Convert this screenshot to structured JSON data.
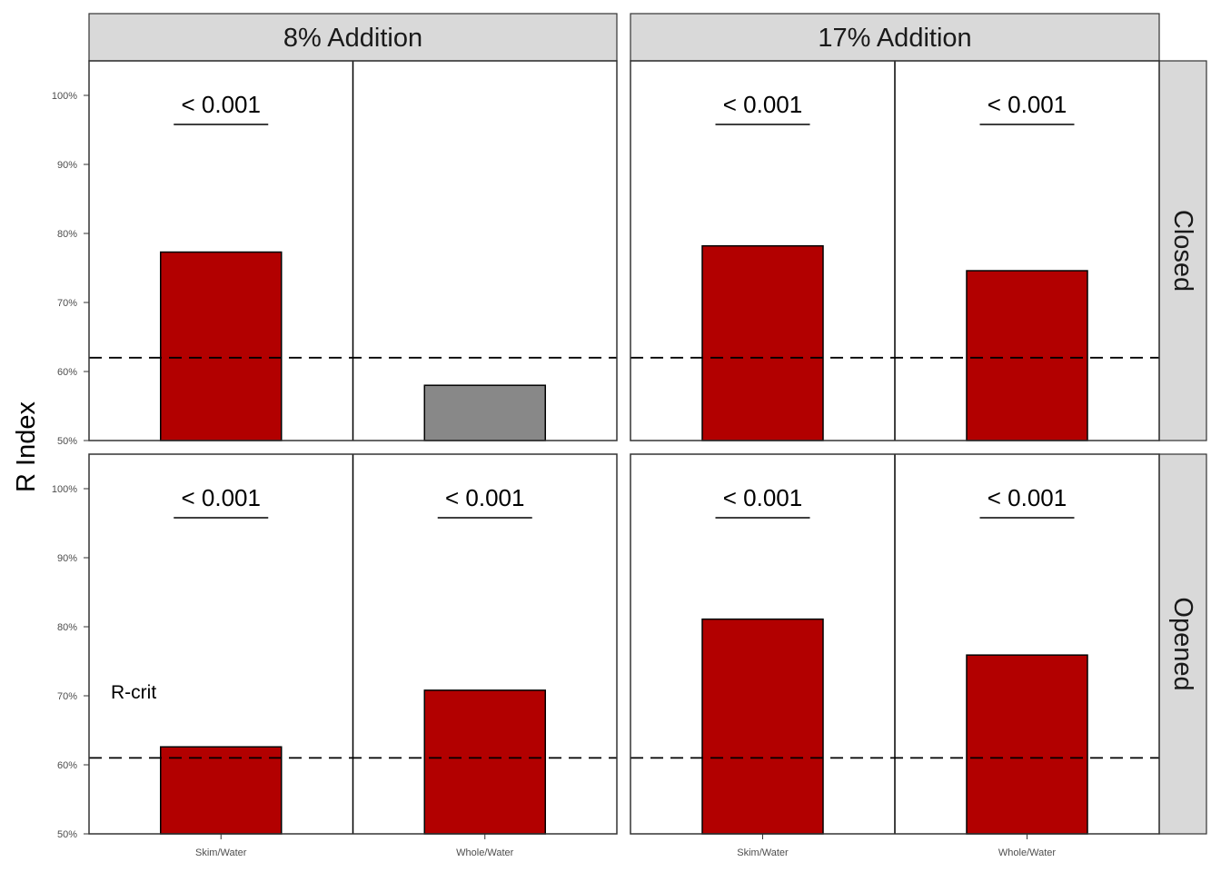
{
  "chart_data": {
    "type": "bar",
    "ylabel": "R Index",
    "ylim": [
      50,
      105
    ],
    "yticks": [
      "50%",
      "60%",
      "70%",
      "80%",
      "90%",
      "100%"
    ],
    "categories": [
      "Skim/Water",
      "Whole/Water"
    ],
    "column_facets": [
      "8% Addition",
      "17% Addition"
    ],
    "row_facets": [
      "Closed",
      "Opened"
    ],
    "rcrit_label": "R-crit",
    "colors": {
      "significant": "#b20000",
      "not_significant": "#888888"
    },
    "panels": [
      {
        "column": "8% Addition",
        "row": "Closed",
        "rcrit": 62,
        "bars": [
          {
            "category": "Skim/Water",
            "value": 77.3,
            "significant": true,
            "p_label": "< 0.001"
          },
          {
            "category": "Whole/Water",
            "value": 58.0,
            "significant": false,
            "p_label": ""
          }
        ]
      },
      {
        "column": "17% Addition",
        "row": "Closed",
        "rcrit": 62,
        "bars": [
          {
            "category": "Skim/Water",
            "value": 78.2,
            "significant": true,
            "p_label": "< 0.001"
          },
          {
            "category": "Whole/Water",
            "value": 74.6,
            "significant": true,
            "p_label": "< 0.001"
          }
        ]
      },
      {
        "column": "8% Addition",
        "row": "Opened",
        "rcrit": 61,
        "bars": [
          {
            "category": "Skim/Water",
            "value": 62.6,
            "significant": true,
            "p_label": "< 0.001"
          },
          {
            "category": "Whole/Water",
            "value": 70.8,
            "significant": true,
            "p_label": "< 0.001"
          }
        ]
      },
      {
        "column": "17% Addition",
        "row": "Opened",
        "rcrit": 61,
        "bars": [
          {
            "category": "Skim/Water",
            "value": 81.1,
            "significant": true,
            "p_label": "< 0.001"
          },
          {
            "category": "Whole/Water",
            "value": 75.9,
            "significant": true,
            "p_label": "< 0.001"
          }
        ]
      }
    ]
  }
}
